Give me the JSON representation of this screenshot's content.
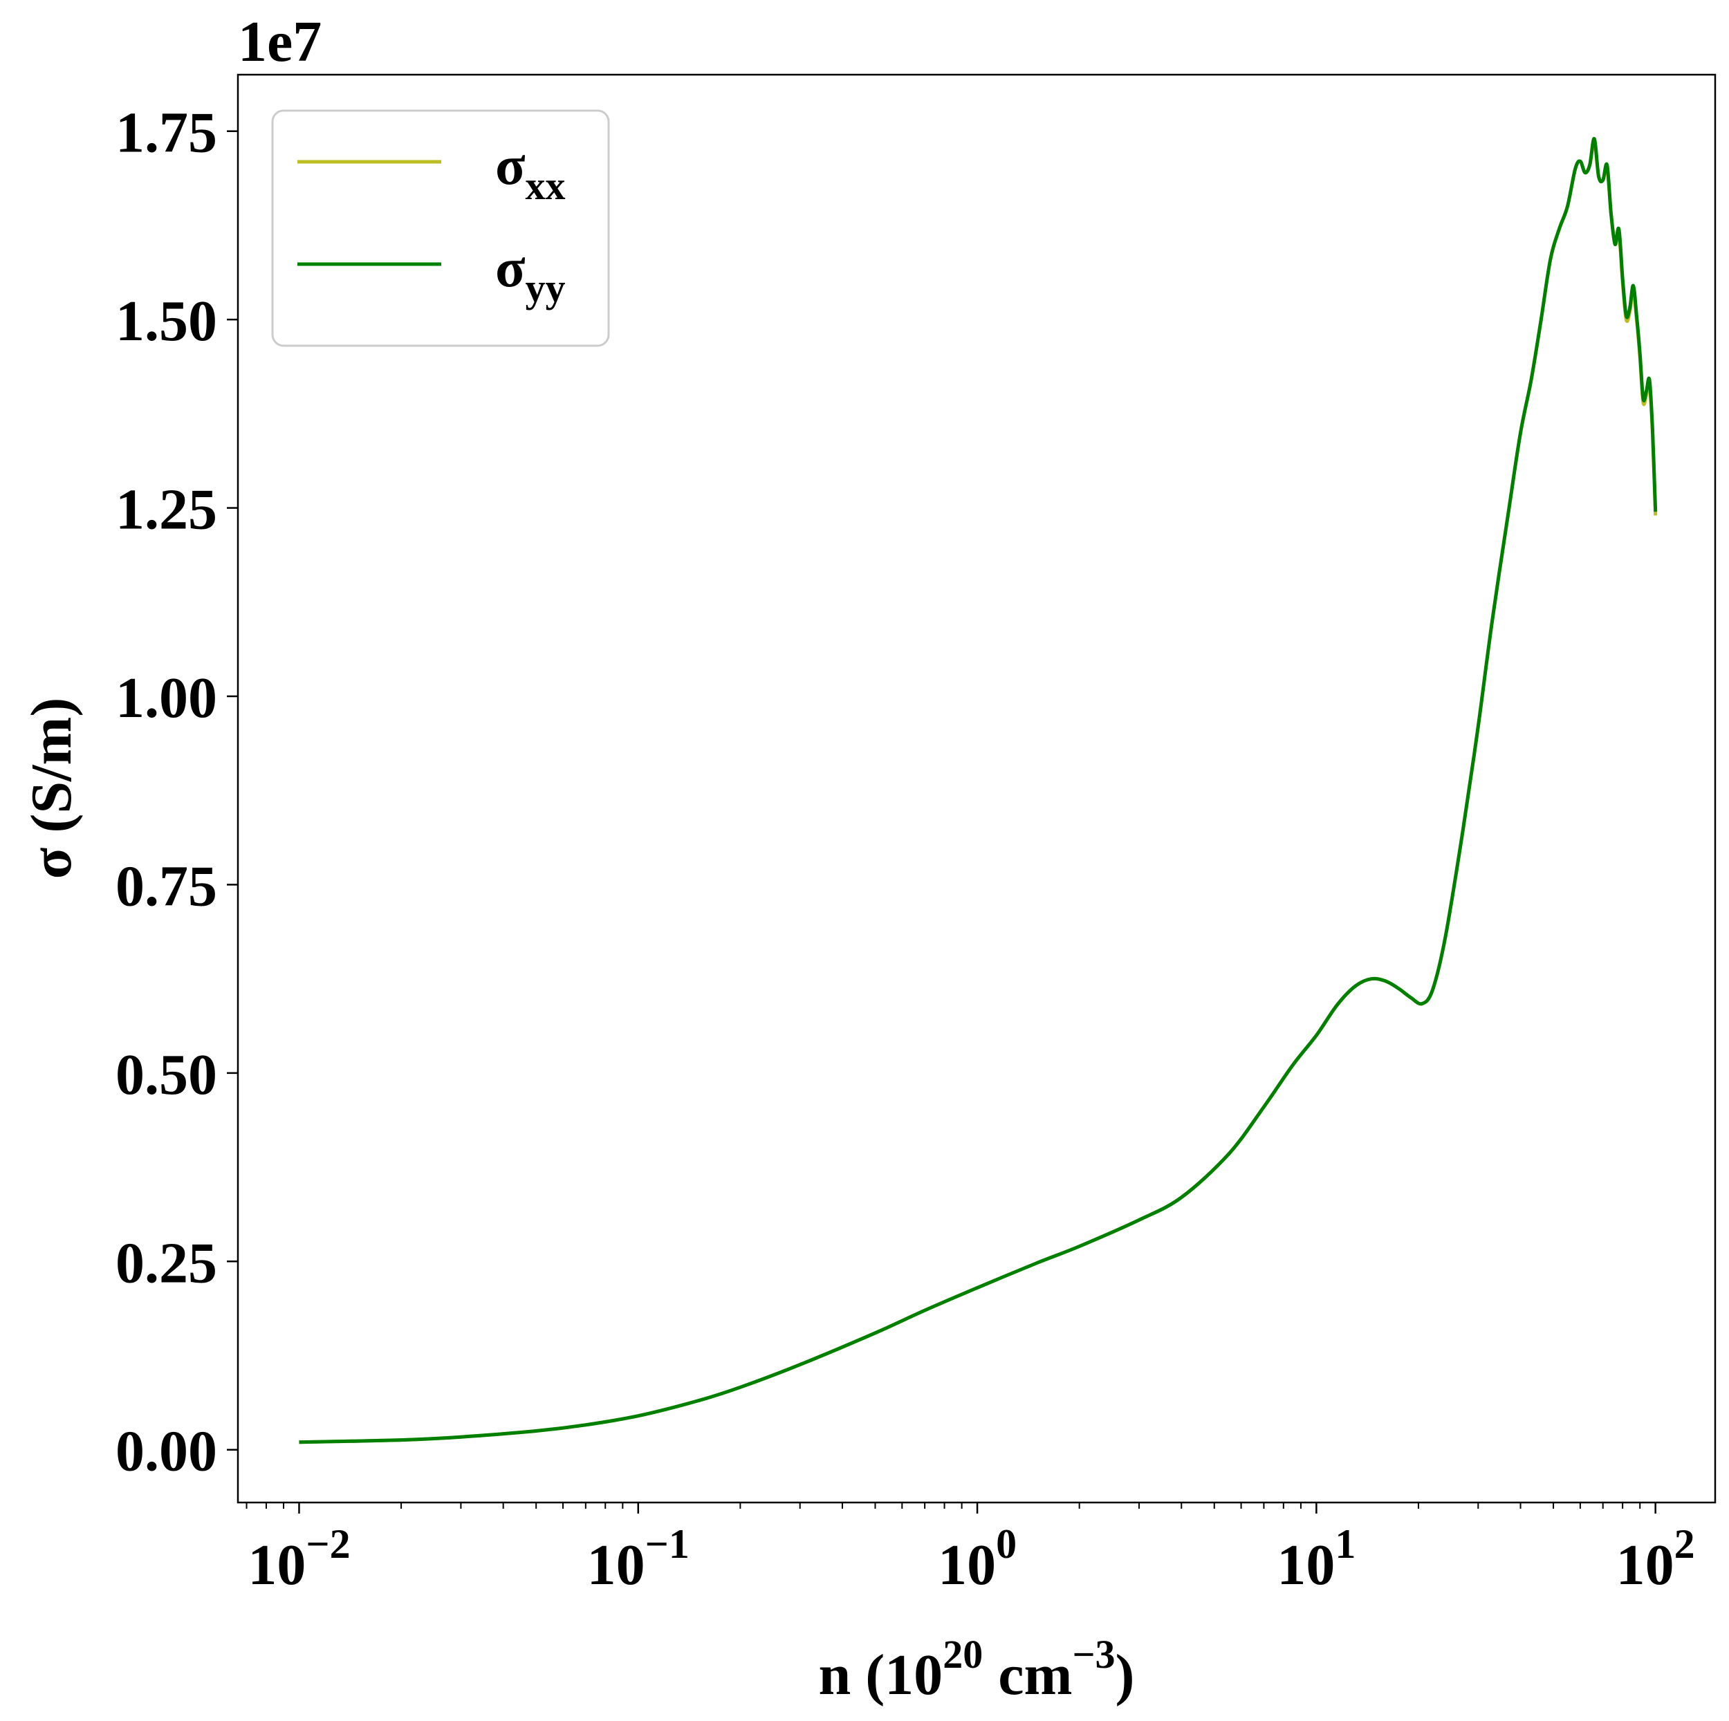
{
  "chart_data": {
    "type": "line",
    "title": "",
    "xlabel": "n (10",
    "xlabel_exp": "20",
    "xlabel_unit": "cm",
    "xlabel_unit_exp": "−3",
    "xlabel_close": ")",
    "ylabel": "σ (S/m)",
    "y_offset_label": "1e7",
    "xscale": "log",
    "xlim": [
      0.0066,
      150
    ],
    "ylim": [
      -0.07,
      1.825
    ],
    "y_unit_multiplier": 10000000,
    "grid": false,
    "legend_position": "upper-left",
    "x_ticks": [
      {
        "value": 0.01,
        "base": "10",
        "exp": "−2"
      },
      {
        "value": 0.1,
        "base": "10",
        "exp": "−1"
      },
      {
        "value": 1,
        "base": "10",
        "exp": "0"
      },
      {
        "value": 10,
        "base": "10",
        "exp": "1"
      },
      {
        "value": 100,
        "base": "10",
        "exp": "2"
      }
    ],
    "y_ticks": [
      {
        "value": 0.0,
        "label": "0.00"
      },
      {
        "value": 0.25,
        "label": "0.25"
      },
      {
        "value": 0.5,
        "label": "0.50"
      },
      {
        "value": 0.75,
        "label": "0.75"
      },
      {
        "value": 1.0,
        "label": "1.00"
      },
      {
        "value": 1.25,
        "label": "1.25"
      },
      {
        "value": 1.5,
        "label": "1.50"
      },
      {
        "value": 1.75,
        "label": "1.75"
      }
    ],
    "series": [
      {
        "name": "σ",
        "name_sub": "xx",
        "color": "#bcbd22",
        "x": [
          0.01,
          0.02,
          0.03,
          0.05,
          0.07,
          0.1,
          0.15,
          0.2,
          0.3,
          0.5,
          0.7,
          1.0,
          1.5,
          2.0,
          3.0,
          4.0,
          5.5,
          7.0,
          8.5,
          10.0,
          11.5,
          13.0,
          14.5,
          16.0,
          17.5,
          19.0,
          20.5,
          22.0,
          24.0,
          27.0,
          30.0,
          33.0,
          37.0,
          40.0,
          43.0,
          46.0,
          49.0,
          52.0,
          55.0,
          58.0,
          60.0,
          62.0,
          64.0,
          66.0,
          68.0,
          70.0,
          72.0,
          74.0,
          76.0,
          78.0,
          80.0,
          82.0,
          84.0,
          86.0,
          88.0,
          90.0,
          92.0,
          94.0,
          96.0,
          98.0,
          100.0
        ],
        "values": [
          0.01,
          0.013,
          0.017,
          0.025,
          0.033,
          0.045,
          0.065,
          0.083,
          0.113,
          0.155,
          0.185,
          0.215,
          0.248,
          0.27,
          0.305,
          0.335,
          0.392,
          0.455,
          0.51,
          0.55,
          0.59,
          0.615,
          0.625,
          0.622,
          0.612,
          0.6,
          0.592,
          0.61,
          0.68,
          0.82,
          0.96,
          1.1,
          1.25,
          1.35,
          1.42,
          1.5,
          1.58,
          1.62,
          1.65,
          1.7,
          1.71,
          1.695,
          1.705,
          1.735,
          1.69,
          1.685,
          1.7,
          1.64,
          1.6,
          1.615,
          1.55,
          1.5,
          1.51,
          1.54,
          1.5,
          1.45,
          1.39,
          1.4,
          1.415,
          1.35,
          1.24
        ]
      },
      {
        "name": "σ",
        "name_sub": "yy",
        "color": "#008000",
        "x": [
          0.01,
          0.02,
          0.03,
          0.05,
          0.07,
          0.1,
          0.15,
          0.2,
          0.3,
          0.5,
          0.7,
          1.0,
          1.5,
          2.0,
          3.0,
          4.0,
          5.5,
          7.0,
          8.5,
          10.0,
          11.5,
          13.0,
          14.5,
          16.0,
          17.5,
          19.0,
          20.5,
          22.0,
          24.0,
          27.0,
          30.0,
          33.0,
          37.0,
          40.0,
          43.0,
          46.0,
          49.0,
          52.0,
          55.0,
          58.0,
          60.0,
          62.0,
          64.0,
          66.0,
          68.0,
          70.0,
          72.0,
          74.0,
          76.0,
          78.0,
          80.0,
          82.0,
          84.0,
          86.0,
          88.0,
          90.0,
          92.0,
          94.0,
          96.0,
          98.0,
          100.0
        ],
        "values": [
          0.01,
          0.013,
          0.017,
          0.025,
          0.033,
          0.045,
          0.065,
          0.083,
          0.113,
          0.155,
          0.185,
          0.215,
          0.248,
          0.27,
          0.305,
          0.335,
          0.392,
          0.455,
          0.51,
          0.55,
          0.59,
          0.615,
          0.625,
          0.622,
          0.612,
          0.6,
          0.592,
          0.61,
          0.68,
          0.82,
          0.96,
          1.1,
          1.25,
          1.35,
          1.42,
          1.5,
          1.58,
          1.62,
          1.65,
          1.7,
          1.71,
          1.695,
          1.705,
          1.74,
          1.69,
          1.685,
          1.705,
          1.64,
          1.6,
          1.62,
          1.555,
          1.505,
          1.515,
          1.545,
          1.505,
          1.455,
          1.395,
          1.405,
          1.42,
          1.355,
          1.245
        ]
      }
    ]
  }
}
